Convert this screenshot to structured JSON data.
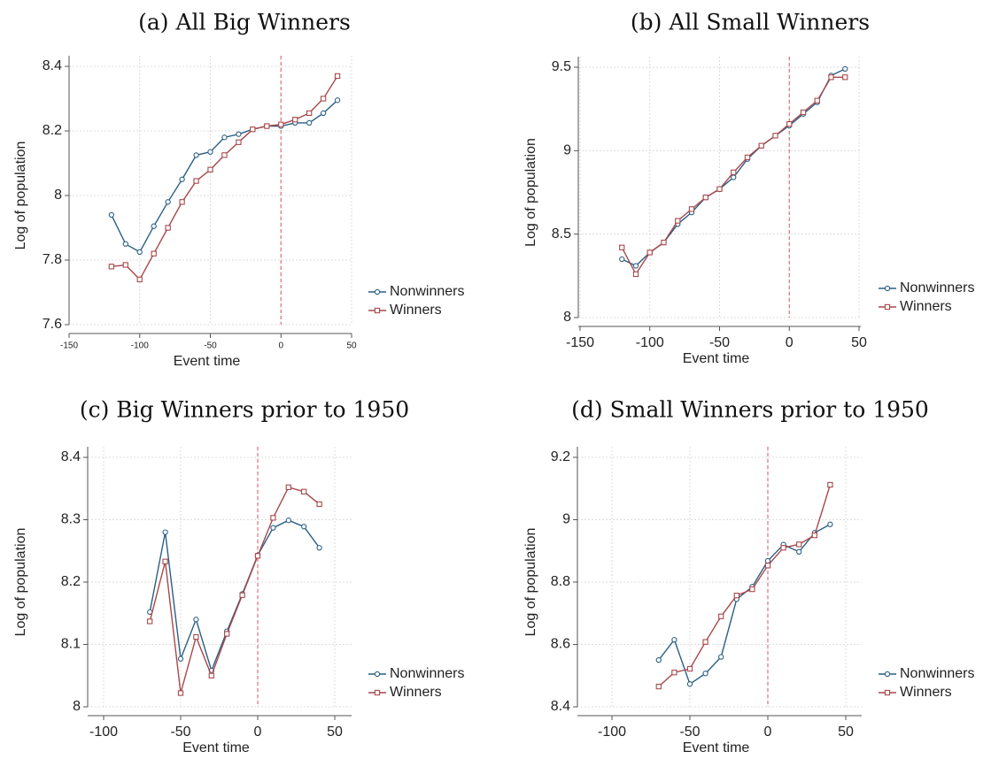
{
  "colors": {
    "nonwinners": "#2a5f84",
    "winners": "#a8484b",
    "vline": "#d9737b"
  },
  "chart_data": [
    {
      "type": "line",
      "title": "(a) All Big Winners",
      "xlabel": "Event time",
      "ylabel": "Log of population",
      "xlim": [
        -150,
        50
      ],
      "ylim": [
        7.6,
        8.4
      ],
      "xticks": [
        -150,
        -100,
        -50,
        0,
        50
      ],
      "xtick_labels": [
        "-150",
        "-100",
        "-50",
        "0",
        "50"
      ],
      "yticks": [
        7.6,
        7.8,
        8,
        8.2,
        8.4
      ],
      "ytick_labels": [
        "7.6",
        "7.8",
        "8",
        "8.2",
        "8.4"
      ],
      "vline": 0,
      "grid": true,
      "legend": "right",
      "x": [
        -120,
        -110,
        -100,
        -90,
        -80,
        -70,
        -60,
        -50,
        -40,
        -30,
        -20,
        -10,
        0,
        10,
        20,
        30,
        40
      ],
      "series": [
        {
          "name": "Nonwinners",
          "marker": "circle",
          "values": [
            7.94,
            7.85,
            7.825,
            7.905,
            7.98,
            8.05,
            8.125,
            8.135,
            8.18,
            8.19,
            8.205,
            8.215,
            8.215,
            8.225,
            8.225,
            8.255,
            8.295
          ]
        },
        {
          "name": "Winners",
          "marker": "square",
          "values": [
            7.78,
            7.785,
            7.74,
            7.82,
            7.9,
            7.98,
            8.045,
            8.08,
            8.125,
            8.165,
            8.205,
            8.215,
            8.22,
            8.235,
            8.255,
            8.3,
            8.37
          ]
        }
      ]
    },
    {
      "type": "line",
      "title": "(b) All Small Winners",
      "xlabel": "Event time",
      "ylabel": "Log of population",
      "xlim": [
        -150,
        50
      ],
      "ylim": [
        8,
        9.5
      ],
      "xticks": [
        -150,
        -100,
        -50,
        0,
        50
      ],
      "xtick_labels": [
        "-150",
        "-100",
        "-50",
        "0",
        "50"
      ],
      "yticks": [
        8,
        8.5,
        9,
        9.5
      ],
      "ytick_labels": [
        "8",
        "8.5",
        "9",
        "9.5"
      ],
      "vline": 0,
      "grid": true,
      "legend": "right",
      "x": [
        -120,
        -110,
        -100,
        -90,
        -80,
        -70,
        -60,
        -50,
        -40,
        -30,
        -20,
        -10,
        0,
        10,
        20,
        30,
        40
      ],
      "series": [
        {
          "name": "Nonwinners",
          "marker": "circle",
          "values": [
            8.35,
            8.31,
            8.39,
            8.45,
            8.56,
            8.63,
            8.72,
            8.77,
            8.84,
            8.95,
            9.03,
            9.09,
            9.15,
            9.22,
            9.29,
            9.45,
            9.49
          ]
        },
        {
          "name": "Winners",
          "marker": "square",
          "values": [
            8.42,
            8.26,
            8.39,
            8.45,
            8.58,
            8.65,
            8.72,
            8.77,
            8.87,
            8.96,
            9.03,
            9.09,
            9.16,
            9.23,
            9.3,
            9.44,
            9.44
          ]
        }
      ]
    },
    {
      "type": "line",
      "title": "(c) Big Winners prior to 1950",
      "xlabel": "Event time",
      "ylabel": "Log of population",
      "xlim": [
        -100,
        50
      ],
      "ylim": [
        8,
        8.4
      ],
      "xticks": [
        -100,
        -50,
        0,
        50
      ],
      "xtick_labels": [
        "-100",
        "-50",
        "0",
        "50"
      ],
      "yticks": [
        8,
        8.1,
        8.2,
        8.3,
        8.4
      ],
      "ytick_labels": [
        "8",
        "8.1",
        "8.2",
        "8.3",
        "8.4"
      ],
      "vline": 0,
      "grid": true,
      "legend": "right",
      "x": [
        -70,
        -60,
        -50,
        -40,
        -30,
        -20,
        -10,
        0,
        10,
        20,
        30,
        40
      ],
      "series": [
        {
          "name": "Nonwinners",
          "marker": "circle",
          "values": [
            8.152,
            8.28,
            8.077,
            8.14,
            8.058,
            8.121,
            8.181,
            8.243,
            8.287,
            8.299,
            8.289,
            8.255
          ]
        },
        {
          "name": "Winners",
          "marker": "square",
          "values": [
            8.137,
            8.233,
            8.022,
            8.112,
            8.05,
            8.117,
            8.179,
            8.242,
            8.303,
            8.352,
            8.345,
            8.325
          ]
        }
      ]
    },
    {
      "type": "line",
      "title": "(d) Small Winners prior to 1950",
      "xlabel": "Event time",
      "ylabel": "Log of population",
      "xlim": [
        -100,
        50
      ],
      "ylim": [
        8.4,
        9.2
      ],
      "xticks": [
        -100,
        -50,
        0,
        50
      ],
      "xtick_labels": [
        "-100",
        "-50",
        "0",
        "50"
      ],
      "yticks": [
        8.4,
        8.6,
        8.8,
        9,
        9.2
      ],
      "ytick_labels": [
        "8.4",
        "8.6",
        "8.8",
        "9",
        "9.2"
      ],
      "vline": 0,
      "grid": true,
      "legend": "right",
      "x": [
        -70,
        -60,
        -50,
        -40,
        -30,
        -20,
        -10,
        0,
        10,
        20,
        30,
        40
      ],
      "series": [
        {
          "name": "Nonwinners",
          "marker": "circle",
          "values": [
            8.55,
            8.615,
            8.473,
            8.507,
            8.56,
            8.745,
            8.785,
            8.868,
            8.92,
            8.897,
            8.958,
            8.985
          ]
        },
        {
          "name": "Winners",
          "marker": "square",
          "values": [
            8.465,
            8.51,
            8.522,
            8.608,
            8.69,
            8.757,
            8.777,
            8.853,
            8.91,
            8.921,
            8.95,
            9.112
          ]
        }
      ]
    }
  ]
}
